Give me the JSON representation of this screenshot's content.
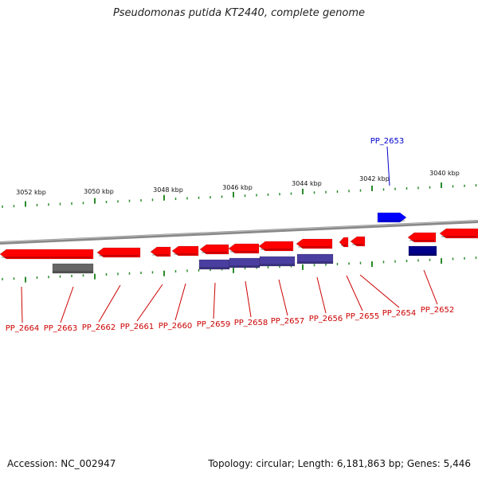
{
  "title": "Pseudomonas putida KT2440, complete genome",
  "footer": {
    "accession": "Accession: NC_002947",
    "summary": "Topology: circular; Length: 6,181,863 bp; Genes: 5,446"
  },
  "colors": {
    "gene_forward_highlight": "#0000ff",
    "gene_reverse": "#ff0000",
    "cds_reverse": "#4a3fa0",
    "cds_forward": "#00008b",
    "pseudo": "#666666",
    "tick": "#2a8a2a",
    "backbone": "#888888",
    "label_reverse": "#cc0000",
    "label_forward": "#0000cc"
  },
  "ruler": [
    {
      "label": "3052 kbp"
    },
    {
      "label": "3050 kbp"
    },
    {
      "label": "3048 kbp"
    },
    {
      "label": "3046 kbp"
    },
    {
      "label": "3044 kbp"
    },
    {
      "label": "3042 kbp"
    },
    {
      "label": "3040 kbp"
    }
  ],
  "genes": [
    {
      "label": "PP_2664",
      "strand": "reverse"
    },
    {
      "label": "PP_2663",
      "strand": "reverse"
    },
    {
      "label": "PP_2662",
      "strand": "reverse"
    },
    {
      "label": "PP_2661",
      "strand": "reverse"
    },
    {
      "label": "PP_2660",
      "strand": "reverse"
    },
    {
      "label": "PP_2659",
      "strand": "reverse"
    },
    {
      "label": "PP_2658",
      "strand": "reverse"
    },
    {
      "label": "PP_2657",
      "strand": "reverse"
    },
    {
      "label": "PP_2656",
      "strand": "reverse"
    },
    {
      "label": "PP_2655",
      "strand": "reverse"
    },
    {
      "label": "PP_2654",
      "strand": "reverse"
    },
    {
      "label": "PP_2653",
      "strand": "forward"
    },
    {
      "label": "PP_2652",
      "strand": "reverse"
    }
  ]
}
